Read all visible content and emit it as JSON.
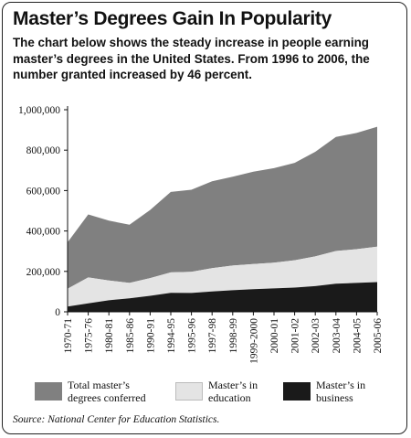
{
  "header": {
    "title": "Master’s Degrees Gain In Popularity",
    "subtitle": "The chart below shows the steady increase in people earning master’s degrees in the United States. From 1996 to 2006, the number granted increased by 46 percent."
  },
  "chart_data": {
    "type": "area",
    "title": "",
    "xlabel": "",
    "ylabel": "",
    "ylim": [
      0,
      1000000
    ],
    "y_ticks": [
      "0",
      "200,000",
      "400,000",
      "600,000",
      "800,000",
      "1,000,000"
    ],
    "grid": false,
    "legend_position": "bottom",
    "categories": [
      "1970-71",
      "1975-76",
      "1980-81",
      "1985-86",
      "1990-91",
      "1994-95",
      "1995-96",
      "1997-98",
      "1998-99",
      "1999-2000",
      "2000-01",
      "2001-02",
      "2002-03",
      "2003-04",
      "2004-05",
      "2005-06"
    ],
    "series": [
      {
        "name": "Total master’s degrees conferred",
        "color": "#808080",
        "values": [
          230000,
          312000,
          296000,
          288000,
          337000,
          398000,
          406000,
          430000,
          440000,
          457000,
          468000,
          482000,
          518000,
          564000,
          575000,
          594000
        ]
      },
      {
        "name": "Master’s in education",
        "color": "#e4e4e4",
        "values": [
          88000,
          128000,
          98000,
          76000,
          88000,
          101000,
          105000,
          115000,
          122000,
          124000,
          127000,
          135000,
          147000,
          162000,
          167000,
          175000
        ]
      },
      {
        "name": "Master’s in business",
        "color": "#1a1a1a",
        "values": [
          26000,
          42000,
          57000,
          67000,
          79000,
          94000,
          93000,
          101000,
          107000,
          112000,
          116000,
          120000,
          127000,
          139000,
          143000,
          147000
        ]
      }
    ]
  },
  "legend": [
    {
      "label": "Total master’s\ndegrees conferred",
      "color": "#808080"
    },
    {
      "label": "Master’s in\neducation",
      "color": "#e4e4e4"
    },
    {
      "label": "Master’s in\nbusiness",
      "color": "#1a1a1a"
    }
  ],
  "source": "Source: National Center for Education Statistics."
}
